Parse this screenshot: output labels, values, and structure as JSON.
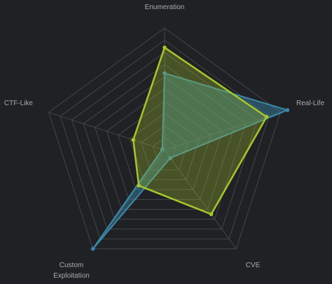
{
  "colors": {
    "background": "#1f2124",
    "grid": "#43464a",
    "label": "#a9acaf"
  },
  "chart_data": {
    "type": "radar",
    "title": "",
    "axes": [
      "Enumeration",
      "Real-Life",
      "CVE",
      "Custom Exploitation",
      "CTF-Like"
    ],
    "axis_label_lines": [
      [
        "Enumeration"
      ],
      [
        "Real-Life"
      ],
      [
        "CVE"
      ],
      [
        "Custom",
        "Exploitation"
      ],
      [
        "CTF-Like"
      ]
    ],
    "range": [
      0,
      10
    ],
    "grid_levels": 10,
    "grid": true,
    "legend": "none",
    "series": [
      {
        "values": [
          6.3,
          10.6,
          0.8,
          10.0,
          0.2
        ],
        "color": "#3a87a8",
        "fill_opacity": 0.45
      },
      {
        "values": [
          8.4,
          8.8,
          6.5,
          3.6,
          2.7
        ],
        "color": "#a5c72a",
        "fill_opacity": 0.3
      }
    ]
  }
}
